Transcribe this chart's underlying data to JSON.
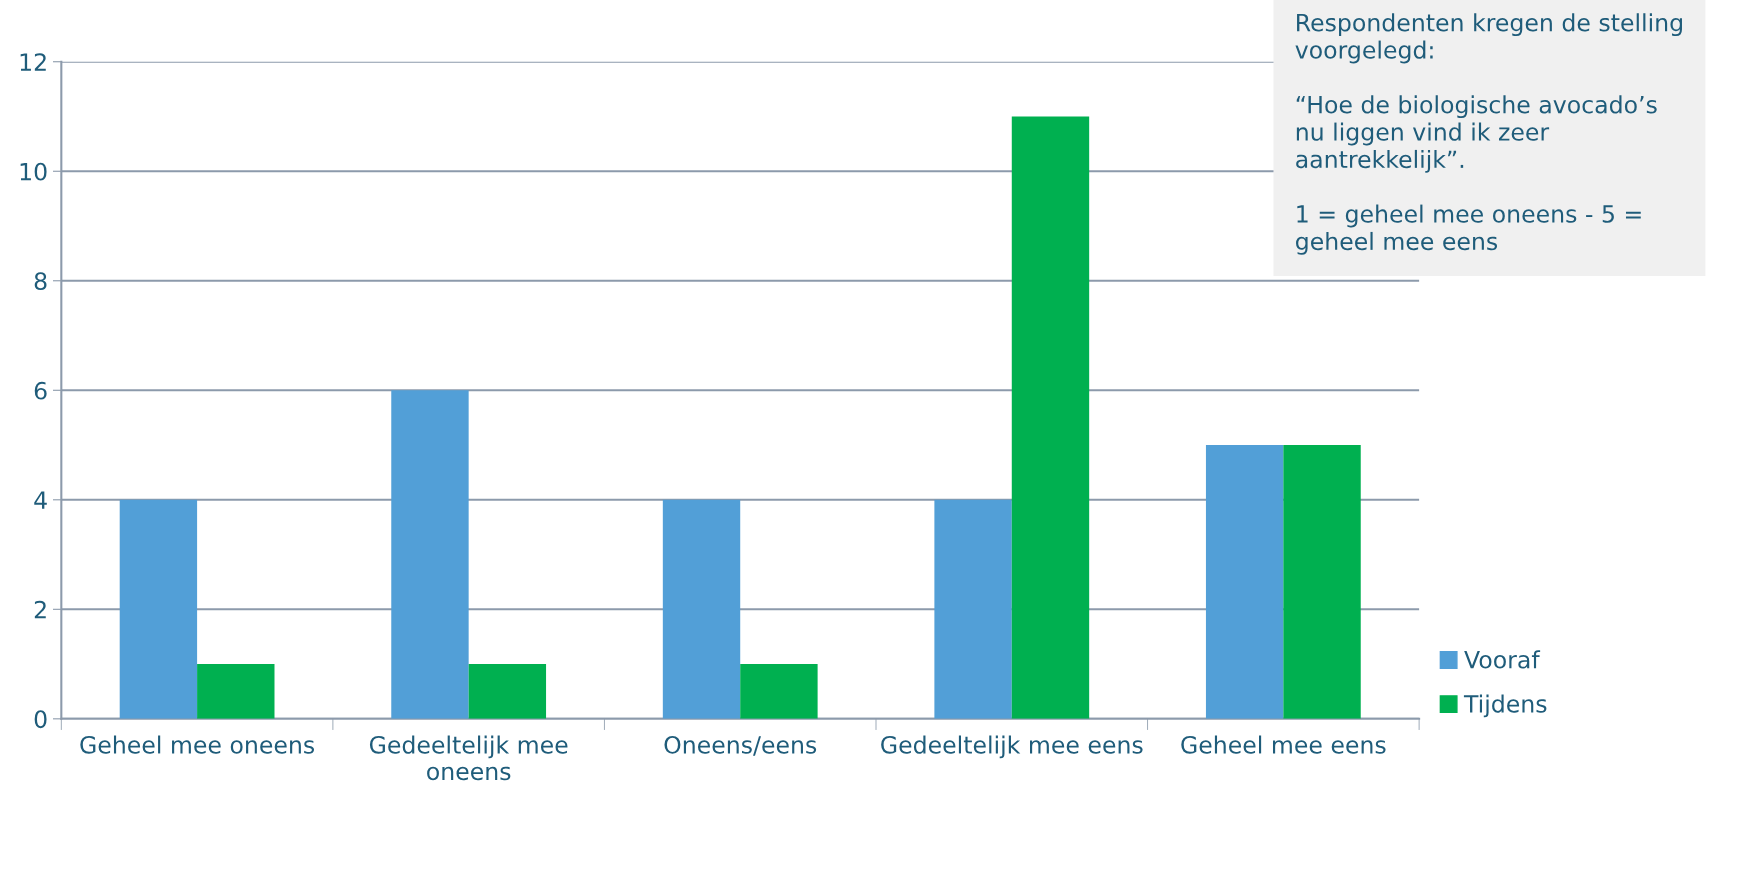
{
  "chart_data": {
    "type": "bar",
    "categories": [
      "Geheel mee oneens",
      "Gedeeltelijk mee\noneens",
      "Oneens/eens",
      "Gedeeltelijk mee eens",
      "Geheel mee eens"
    ],
    "series": [
      {
        "name": "Vooraf",
        "color": "#529fd7",
        "values": [
          4,
          6,
          4,
          4,
          5
        ]
      },
      {
        "name": "Tijdens",
        "color": "#00b050",
        "values": [
          1,
          1,
          1,
          11,
          5
        ]
      }
    ],
    "ylim": [
      0,
      12
    ],
    "yticks": [
      0,
      2,
      4,
      6,
      8,
      10,
      12
    ],
    "grid": "y",
    "legend": "right",
    "annotations": [
      "Respondenten kregen de stelling\nvoorgelegd:\n\n“Hoe de biologische avocado’s\nnu liggen vind ik zeer\naantrekkelijk”.\n\n1 = geheel mee oneens - 5 =\ngeheel mee eens"
    ]
  }
}
